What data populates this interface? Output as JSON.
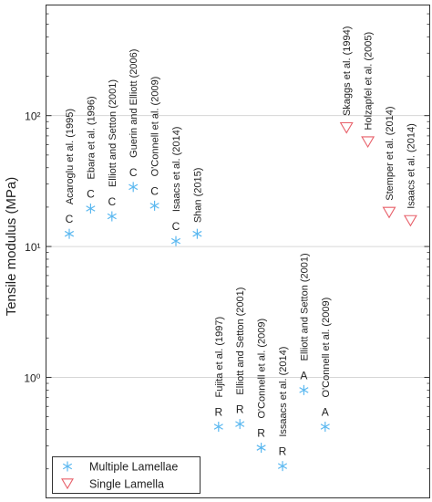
{
  "chart_data": {
    "type": "scatter",
    "ylabel": "Tensile modulus (MPa)",
    "yscale": "log",
    "ylim": [
      0.12,
      700
    ],
    "yticks": [
      {
        "value": 1,
        "label": "10⁰"
      },
      {
        "value": 10,
        "label": "10¹"
      },
      {
        "value": 100,
        "label": "10²"
      }
    ],
    "grid": "y-major",
    "legend_position": "bottom-left",
    "series": [
      {
        "name": "Multiple Lamellae",
        "marker": "asterisk",
        "color": "#5bb8f0",
        "points": [
          {
            "index": 1,
            "y": 12.5,
            "label": "Acaroglu et al. (1995)",
            "code": "C"
          },
          {
            "index": 2,
            "y": 19.5,
            "label": "Ebara et al. (1996)",
            "code": "C"
          },
          {
            "index": 3,
            "y": 17.0,
            "label": "Elliott and Setton (2001)",
            "code": "C"
          },
          {
            "index": 4,
            "y": 28.5,
            "label": "Guerin and Elliott (2006)",
            "code": "C"
          },
          {
            "index": 5,
            "y": 20.5,
            "label": "O'Connell et al. (2009)",
            "code": "C"
          },
          {
            "index": 6,
            "y": 11.0,
            "label": "Isaacs et al. (2014)",
            "code": "C"
          },
          {
            "index": 7,
            "y": 12.5,
            "label": "Shan (2015)",
            "code": ""
          },
          {
            "index": 8,
            "y": 0.42,
            "label": "Fujita et al. (1997)",
            "code": "R"
          },
          {
            "index": 9,
            "y": 0.44,
            "label": "Elliott and Setton (2001)",
            "code": "R"
          },
          {
            "index": 10,
            "y": 0.29,
            "label": "O'Connell et al. (2009)",
            "code": "R"
          },
          {
            "index": 11,
            "y": 0.21,
            "label": "Issaacs et al. (2014)",
            "code": "R"
          },
          {
            "index": 12,
            "y": 0.8,
            "label": "Elliott and Setton (2001)",
            "code": "A"
          },
          {
            "index": 13,
            "y": 0.42,
            "label": "O'Connell et al. (2009)",
            "code": "A"
          }
        ]
      },
      {
        "name": "Single Lamella",
        "marker": "triangle-down",
        "color": "#e8606a",
        "points": [
          {
            "index": 14,
            "y": 82,
            "label": "Skaggs et al. (1994)",
            "code": ""
          },
          {
            "index": 15,
            "y": 64,
            "label": "Holzapfel et al. (2005)",
            "code": ""
          },
          {
            "index": 16,
            "y": 18.5,
            "label": "Stemper et al. (2014)",
            "code": ""
          },
          {
            "index": 17,
            "y": 16.0,
            "label": "Isaacs et al. (2014)",
            "code": ""
          }
        ]
      }
    ]
  }
}
